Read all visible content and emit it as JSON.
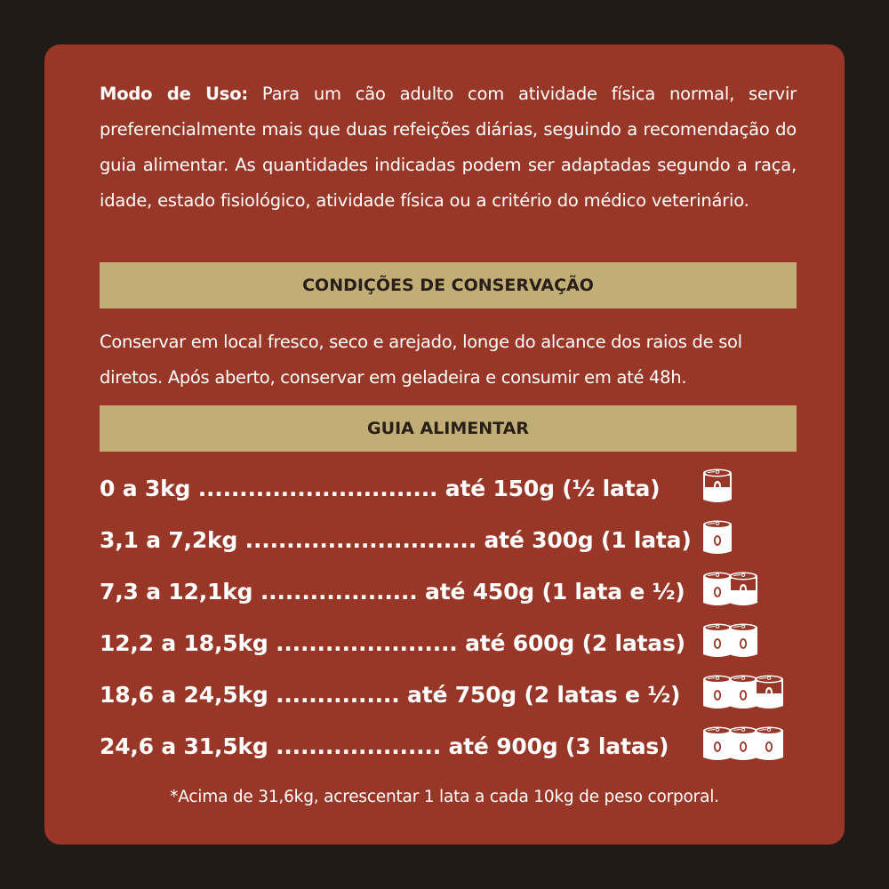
{
  "usage": {
    "label": "Modo de Uso:",
    "text": " Para um cão adulto com atividade física normal, servir preferencialmente mais que duas refeições diárias, seguindo a recomendação do guia alimentar. As quantidades indicadas podem ser adaptadas segundo a raça, idade, estado fisiológico, atividade física ou a critério do médico veterinário."
  },
  "conservation": {
    "title": "CONDIÇÕES DE CONSERVAÇÃO",
    "text": "Conservar em local fresco, seco e arejado, longe do alcance dos raios de sol diretos. Após aberto, conservar em geladeira e consumir em até 48h."
  },
  "guide": {
    "title": "GUIA ALIMENTAR",
    "rows": [
      {
        "text": "0 a 3kg ............................. até  150g (½ lata)",
        "cans": 0.5
      },
      {
        "text": "3,1 a 7,2kg ............................ até 300g (1 lata)",
        "cans": 1
      },
      {
        "text": "7,3 a 12,1kg ................... até 450g (1 lata e ½)",
        "cans": 1.5
      },
      {
        "text": "12,2 a 18,5kg ...................... até 600g (2 latas)",
        "cans": 2
      },
      {
        "text": "18,6 a 24,5kg ............... até 750g (2 latas e ½)",
        "cans": 2.5
      },
      {
        "text": "24,6 a 31,5kg .................... até 900g (3 latas)",
        "cans": 3
      }
    ]
  },
  "note": "*Acima de 31,6kg, acrescentar 1 lata a cada 10kg de peso corporal.",
  "colors": {
    "background": "#211a17",
    "card": "#983727",
    "band": "#c1ae77",
    "can": "#ffffff"
  }
}
